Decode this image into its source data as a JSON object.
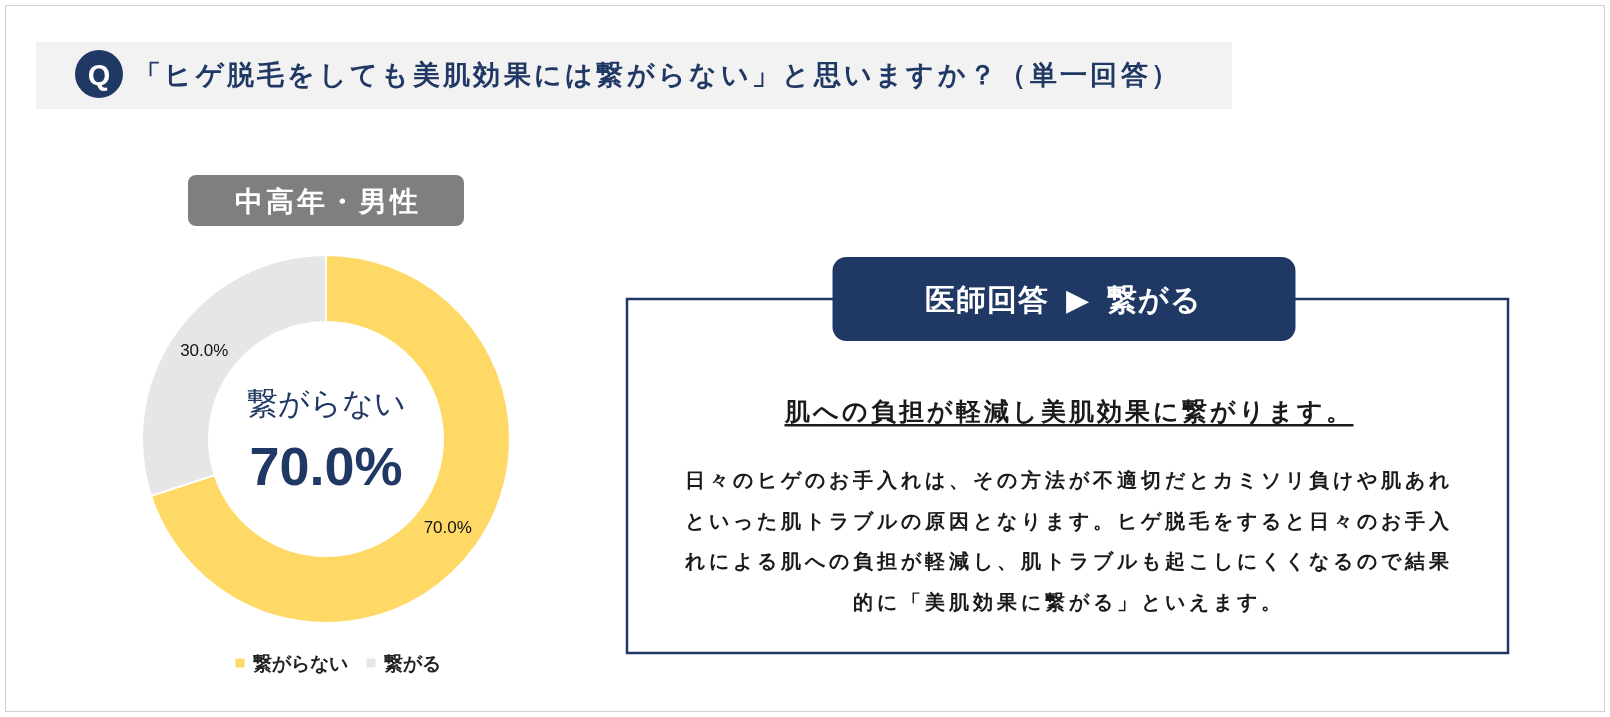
{
  "chart_data": [
    {
      "type": "donut",
      "title": "「ヒゲ脱毛をしても美肌効果には繋がらない」と思いますか？（単一回答）",
      "subtitle": "中高年・男性",
      "categories": [
        "繋がらない",
        "繋がる"
      ],
      "values": [
        70.0,
        30.0
      ],
      "colors": [
        "#ffd966",
        "#e7e6e6"
      ],
      "value_labels": [
        "70.0%",
        "30.0%"
      ],
      "annotations": [
        "Q",
        "繋がらない",
        "70.0%"
      ],
      "legend": "bottom"
    },
    {
      "type": "other",
      "title": "医師回答 ▶ 繋がる",
      "subtitle": "肌への負担が軽減し美肌効果に繋がります。",
      "annotations": [
        "日々のヒゲのお手入れは、その方法が不適切だとカミソリ負けや肌あれといった肌トラブルの原因となります。ヒゲ脱毛をすると日々のお手入れによる肌への負担が軽減し、肌トラブルも起こしにくくなるので結果的に「美肌効果に繋がる」といえます。"
      ]
    }
  ]
}
